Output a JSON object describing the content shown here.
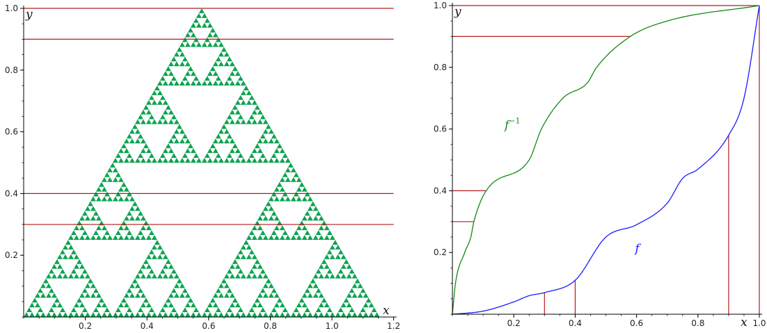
{
  "colors": {
    "fractal": "#0da351",
    "guides": "#b01c1c",
    "f_curve": "#1a1aff",
    "finv_curve": "#138a13",
    "axis": "#000000"
  },
  "chart_data": [
    {
      "type": "fractal",
      "shape": "sierpinski-triangle",
      "vertices": [
        [
          0,
          0
        ],
        [
          1.1547,
          0
        ],
        [
          0.57735,
          1
        ]
      ],
      "recursion_depth": 6,
      "xlabel": "x",
      "ylabel": "y",
      "xlim": [
        0,
        1.2
      ],
      "ylim": [
        0,
        1.0
      ],
      "x_ticks": [
        "0.2",
        "0.4",
        "0.6",
        "0.8",
        "1.0",
        "1.2"
      ],
      "x_tick_values": [
        0.2,
        0.4,
        0.6,
        0.8,
        1.0,
        1.2
      ],
      "y_ticks": [
        "0.2",
        "0.4",
        "0.6",
        "0.8",
        "1.0"
      ],
      "y_tick_values": [
        0.2,
        0.4,
        0.6,
        0.8,
        1.0
      ],
      "horizontal_lines_y": [
        0.3,
        0.4,
        0.9,
        1.0
      ],
      "grid": false
    },
    {
      "type": "line",
      "xlabel": "x",
      "ylabel": "y",
      "xlim": [
        0,
        1.0
      ],
      "ylim": [
        0,
        1.0
      ],
      "x_ticks": [
        "0.2",
        "0.4",
        "0.6",
        "0.8",
        "1.0"
      ],
      "x_tick_values": [
        0.2,
        0.4,
        0.6,
        0.8,
        1.0
      ],
      "y_ticks": [
        "0.2",
        "0.4",
        "0.6",
        "0.8",
        "1.0"
      ],
      "y_tick_values": [
        0.2,
        0.4,
        0.6,
        0.8,
        1.0
      ],
      "grid": false,
      "series": [
        {
          "name": "f",
          "x": [
            0,
            0.1,
            0.2,
            0.25,
            0.3,
            0.4,
            0.5,
            0.6,
            0.7,
            0.75,
            0.8,
            0.9,
            0.95,
            1.0
          ],
          "values": [
            0,
            0.01,
            0.04,
            0.06,
            0.07,
            0.11,
            0.25,
            0.29,
            0.36,
            0.44,
            0.47,
            0.58,
            0.7,
            1.0
          ]
        },
        {
          "name": "f^{-1}",
          "superscript": "−1",
          "x": [
            0,
            0.01,
            0.04,
            0.06,
            0.07,
            0.11,
            0.25,
            0.29,
            0.36,
            0.44,
            0.47,
            0.58,
            0.7,
            1.0
          ],
          "values": [
            0,
            0.1,
            0.2,
            0.25,
            0.3,
            0.4,
            0.5,
            0.6,
            0.7,
            0.75,
            0.8,
            0.9,
            0.95,
            1.0
          ]
        }
      ],
      "horizontal_guides": [
        {
          "y": 0.3,
          "x_end": 0.07
        },
        {
          "y": 0.4,
          "x_end": 0.11
        },
        {
          "y": 0.9,
          "x_end": 0.58
        },
        {
          "y": 1.0,
          "x_end": 1.0
        }
      ],
      "vertical_guides": [
        {
          "x": 0.3,
          "y_end": 0.07
        },
        {
          "x": 0.4,
          "y_end": 0.11
        },
        {
          "x": 0.9,
          "y_end": 0.58
        },
        {
          "x": 1.0,
          "y_end": 1.0
        }
      ]
    }
  ]
}
